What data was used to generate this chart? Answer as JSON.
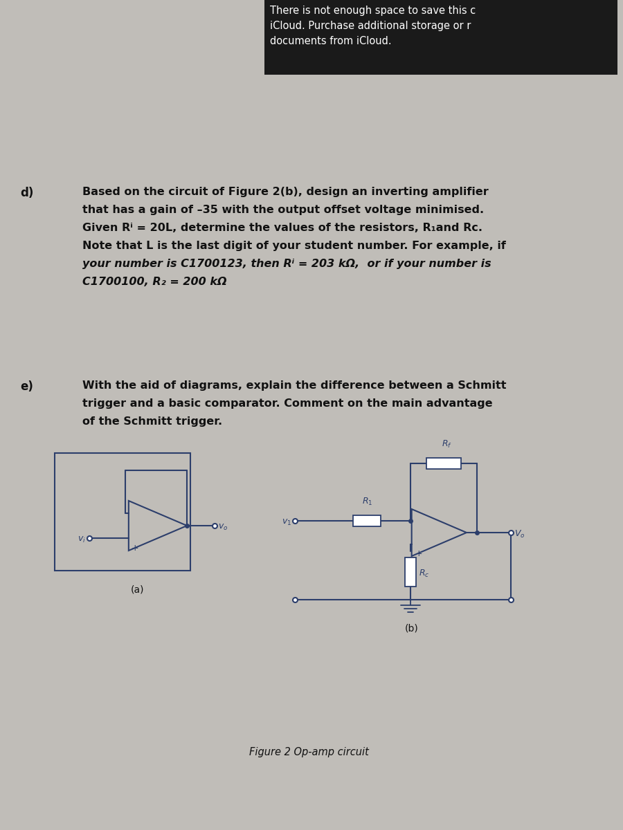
{
  "bg_color": "#c0bdb8",
  "top_box_color": "#1a1a1a",
  "top_box_text_color": "#ffffff",
  "top_box_text": "There is not enough space to save this c\niCloud. Purchase additional storage or r\ndocuments from iCloud.",
  "section_d_label": "d)",
  "section_d_text_line1": "Based on the circuit of Figure 2(b), design an inverting amplifier",
  "section_d_text_line2": "that has a gain of –35 with the output offset voltage minimised.",
  "section_d_text_line3": "Given Rⁱ = 20L, determine the values of the resistors, R₁and Rᴄ.",
  "section_d_text_line4": "Note that L is the last digit of your student number. For example, if",
  "section_d_text_line5": "your number is C1700123, then Rⁱ = 203 kΩ,  or if your number is",
  "section_d_text_line6": "C1700100, R₂ = 200 kΩ",
  "section_e_label": "e)",
  "section_e_text_line1": "With the aid of diagrams, explain the difference between a Schmitt",
  "section_e_text_line2": "trigger and a basic comparator. Comment on the main advantage",
  "section_e_text_line3": "of the Schmitt trigger.",
  "figure_caption": "Figure 2 Op-amp circuit",
  "label_a": "(a)",
  "label_b": "(b)",
  "circ_color": "#2c3e6b",
  "text_color": "#111111"
}
